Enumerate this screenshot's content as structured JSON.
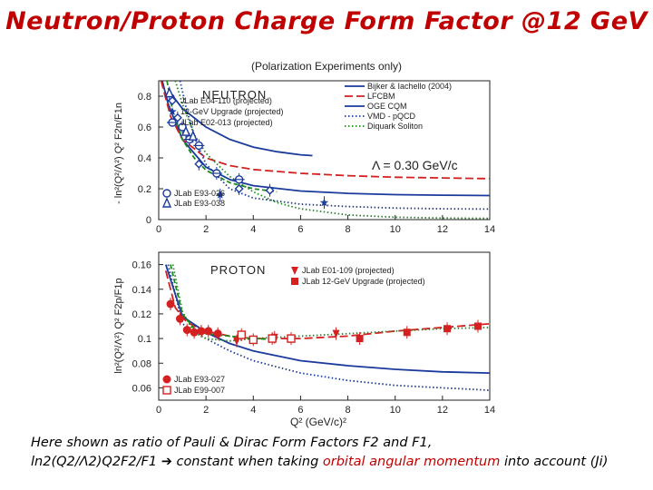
{
  "slide": {
    "title": "Neutron/Proton Charge Form Factor @12 GeV",
    "subtitle": "(Polarization Experiments only)"
  },
  "caption": {
    "line1": "Here shown as ratio of Pauli & Dirac Form Factors F2 and F1,",
    "line2_formula": "ln2(Q2/Λ2)Q2F2/F1",
    "line2_arrow": "➔",
    "line2_text_a": " constant when taking ",
    "line2_highlight": "orbital angular momentum",
    "line2_text_b": " into account (Ji)"
  },
  "chart_data": [
    {
      "type": "scatter",
      "panel_label": "NEUTRON",
      "ylabel": "- ln²(Q²/Λ²) Q² F2n/F1n",
      "x_ticks": [
        "0",
        "2",
        "4",
        "6",
        "8",
        "10",
        "12",
        "14"
      ],
      "y_ticks": [
        "0",
        "0.2",
        "0.4",
        "0.6",
        "0.8"
      ],
      "xlim": [
        0,
        14
      ],
      "ylim": [
        0,
        0.9
      ],
      "annotation": "Λ = 0.30 GeV/c",
      "series": [
        {
          "name": "JLab E04-110 (projected)",
          "kind": "points",
          "marker": "diamond-open",
          "color": "#1a3a9c",
          "points": [
            [
              0.8,
              0.66
            ],
            [
              1.7,
              0.36
            ],
            [
              3.4,
              0.2
            ],
            [
              4.7,
              0.19
            ]
          ]
        },
        {
          "name": "12-GeV Upgrade (projected)",
          "kind": "points",
          "marker": "star",
          "color": "#1a3a9c",
          "points": [
            [
              2.6,
              0.16
            ],
            [
              7.0,
              0.11
            ]
          ]
        },
        {
          "name": "JLab E02-013 (projected)",
          "kind": "points",
          "marker": "cross-circle",
          "color": "#1a3a9c",
          "points": [
            [
              1.3,
              0.52
            ],
            [
              1.7,
              0.48
            ],
            [
              2.45,
              0.3
            ],
            [
              3.4,
              0.26
            ]
          ]
        },
        {
          "name": "JLab E93-026",
          "kind": "points",
          "marker": "circle-open",
          "color": "#1a3a9c",
          "points": [
            [
              0.5,
              0.79
            ],
            [
              1.0,
              0.6
            ]
          ]
        },
        {
          "name": "JLab E93-038",
          "kind": "points",
          "marker": "triangle-open",
          "color": "#1a3a9c",
          "points": [
            [
              0.45,
              0.82
            ],
            [
              1.15,
              0.57
            ],
            [
              1.45,
              0.54
            ]
          ]
        },
        {
          "name": "Bijker & Iachello (2004)",
          "kind": "line",
          "dash": "solid",
          "color": "#1a3a9c",
          "points": [
            [
              0.15,
              0.9
            ],
            [
              0.4,
              0.75
            ],
            [
              1.0,
              0.52
            ],
            [
              2.0,
              0.34
            ],
            [
              3.0,
              0.26
            ],
            [
              4.0,
              0.22
            ],
            [
              6.0,
              0.185
            ],
            [
              8.0,
              0.17
            ],
            [
              10.0,
              0.162
            ],
            [
              12.0,
              0.158
            ],
            [
              14.0,
              0.156
            ]
          ]
        },
        {
          "name": "LFCBM",
          "kind": "line",
          "dash": "longdash",
          "color": "#d42020",
          "points": [
            [
              0.1,
              0.9
            ],
            [
              0.5,
              0.67
            ],
            [
              1.0,
              0.52
            ],
            [
              2.0,
              0.4
            ],
            [
              3.0,
              0.35
            ],
            [
              4.0,
              0.325
            ],
            [
              6.0,
              0.3
            ],
            [
              8.0,
              0.285
            ],
            [
              10.0,
              0.275
            ],
            [
              12.0,
              0.27
            ],
            [
              14.0,
              0.265
            ]
          ]
        },
        {
          "name": "OGE CQM",
          "kind": "line",
          "dash": "solid",
          "color": "#1a3a9c",
          "points": [
            [
              0.5,
              0.82
            ],
            [
              1.0,
              0.72
            ],
            [
              2.0,
              0.6
            ],
            [
              3.0,
              0.52
            ],
            [
              4.0,
              0.47
            ],
            [
              5.0,
              0.44
            ],
            [
              6.0,
              0.42
            ],
            [
              6.5,
              0.415
            ]
          ]
        },
        {
          "name": "VMD - pQCD",
          "kind": "line",
          "dash": "dotted",
          "color": "#1a3a9c",
          "points": [
            [
              0.9,
              0.9
            ],
            [
              1.2,
              0.7
            ],
            [
              1.6,
              0.5
            ],
            [
              2.0,
              0.36
            ],
            [
              3.0,
              0.2
            ],
            [
              4.0,
              0.14
            ],
            [
              6.0,
              0.1
            ],
            [
              8.0,
              0.085
            ],
            [
              10.0,
              0.075
            ],
            [
              12.0,
              0.07
            ],
            [
              14.0,
              0.068
            ]
          ]
        },
        {
          "name": "Diquark Soliton",
          "kind": "line",
          "dash": "dotted",
          "color": "#1c8a1c",
          "points": [
            [
              0.7,
              0.9
            ],
            [
              1.0,
              0.75
            ],
            [
              1.5,
              0.55
            ],
            [
              2.0,
              0.43
            ],
            [
              3.0,
              0.28
            ],
            [
              4.0,
              0.18
            ],
            [
              5.0,
              0.11
            ],
            [
              6.0,
              0.07
            ],
            [
              8.0,
              0.03
            ],
            [
              10.0,
              0.015
            ],
            [
              12.0,
              0.01
            ],
            [
              14.0,
              0.008
            ]
          ]
        },
        {
          "name": "",
          "kind": "line",
          "dash": "dashed",
          "color": "#1c8a1c",
          "points": [
            [
              0.35,
              0.9
            ],
            [
              0.6,
              0.7
            ],
            [
              1.0,
              0.52
            ],
            [
              1.5,
              0.4
            ],
            [
              2.0,
              0.32
            ],
            [
              3.0,
              0.24
            ],
            [
              4.0,
              0.2
            ],
            [
              5.0,
              0.18
            ]
          ]
        }
      ]
    },
    {
      "type": "scatter",
      "panel_label": "PROTON",
      "xlabel": "Q² (GeV/c)²",
      "ylabel": "ln²(Q²/Λ²) Q² F2p/F1p",
      "x_ticks": [
        "0",
        "2",
        "4",
        "6",
        "8",
        "10",
        "12",
        "14"
      ],
      "y_ticks": [
        "0.06",
        "0.08",
        "0.1",
        "0.12",
        "0.14",
        "0.16"
      ],
      "xlim": [
        0,
        14
      ],
      "ylim": [
        0.05,
        0.17
      ],
      "series": [
        {
          "name": "JLab E01-109 (projected)",
          "kind": "points",
          "marker": "triangle-down",
          "color": "#d42020",
          "points": [
            [
              3.3,
              0.098
            ],
            [
              4.9,
              0.101
            ],
            [
              7.5,
              0.104
            ]
          ]
        },
        {
          "name": "JLab 12-GeV Upgrade (projected)",
          "kind": "points",
          "marker": "square",
          "color": "#d42020",
          "points": [
            [
              8.5,
              0.1
            ],
            [
              10.5,
              0.105
            ],
            [
              12.2,
              0.108
            ],
            [
              13.5,
              0.11
            ]
          ]
        },
        {
          "name": "JLab E93-027",
          "kind": "points",
          "marker": "circle",
          "color": "#d42020",
          "points": [
            [
              0.5,
              0.128
            ],
            [
              0.9,
              0.116
            ],
            [
              1.2,
              0.107
            ],
            [
              1.5,
              0.105
            ],
            [
              1.8,
              0.106
            ],
            [
              2.1,
              0.106
            ],
            [
              2.5,
              0.104
            ]
          ]
        },
        {
          "name": "JLab E99-007",
          "kind": "points",
          "marker": "square-open",
          "color": "#d42020",
          "points": [
            [
              3.5,
              0.103
            ],
            [
              4.0,
              0.099
            ],
            [
              4.8,
              0.1
            ],
            [
              5.6,
              0.1
            ]
          ]
        },
        {
          "name": "",
          "kind": "line",
          "dash": "longdash",
          "color": "#d42020",
          "points": [
            [
              0.3,
              0.155
            ],
            [
              0.7,
              0.125
            ],
            [
              1.2,
              0.113
            ],
            [
              2.0,
              0.106
            ],
            [
              3.0,
              0.102
            ],
            [
              4.0,
              0.1
            ],
            [
              6.0,
              0.1
            ],
            [
              8.0,
              0.102
            ],
            [
              10.0,
              0.106
            ],
            [
              12.0,
              0.109
            ],
            [
              14.0,
              0.112
            ]
          ]
        },
        {
          "name": "",
          "kind": "line",
          "dash": "solid",
          "color": "#1a3a9c",
          "points": [
            [
              0.3,
              0.16
            ],
            [
              1.0,
              0.118
            ],
            [
              2.0,
              0.105
            ],
            [
              3.0,
              0.096
            ],
            [
              4.0,
              0.09
            ],
            [
              6.0,
              0.082
            ],
            [
              8.0,
              0.078
            ],
            [
              10.0,
              0.075
            ],
            [
              12.0,
              0.073
            ],
            [
              14.0,
              0.072
            ]
          ]
        },
        {
          "name": "",
          "kind": "line",
          "dash": "dotted",
          "color": "#1a3a9c",
          "points": [
            [
              0.4,
              0.16
            ],
            [
              1.0,
              0.112
            ],
            [
              2.0,
              0.1
            ],
            [
              3.0,
              0.09
            ],
            [
              4.0,
              0.082
            ],
            [
              6.0,
              0.072
            ],
            [
              8.0,
              0.066
            ],
            [
              10.0,
              0.062
            ],
            [
              12.0,
              0.06
            ],
            [
              14.0,
              0.058
            ]
          ]
        },
        {
          "name": "",
          "kind": "line",
          "dash": "dotted",
          "color": "#1c8a1c",
          "points": [
            [
              0.6,
              0.16
            ],
            [
              1.0,
              0.122
            ],
            [
              1.5,
              0.105
            ],
            [
              2.0,
              0.1
            ],
            [
              3.0,
              0.098
            ],
            [
              4.0,
              0.1
            ],
            [
              6.0,
              0.102
            ],
            [
              8.0,
              0.104
            ],
            [
              10.0,
              0.106
            ],
            [
              12.0,
              0.108
            ],
            [
              14.0,
              0.109
            ]
          ]
        },
        {
          "name": "",
          "kind": "line",
          "dash": "dashed",
          "color": "#1c8a1c",
          "points": [
            [
              0.5,
              0.16
            ],
            [
              1.0,
              0.12
            ],
            [
              1.5,
              0.108
            ],
            [
              2.0,
              0.104
            ],
            [
              3.0,
              0.102
            ],
            [
              4.0,
              0.1
            ],
            [
              5.0,
              0.099
            ]
          ]
        }
      ]
    }
  ]
}
